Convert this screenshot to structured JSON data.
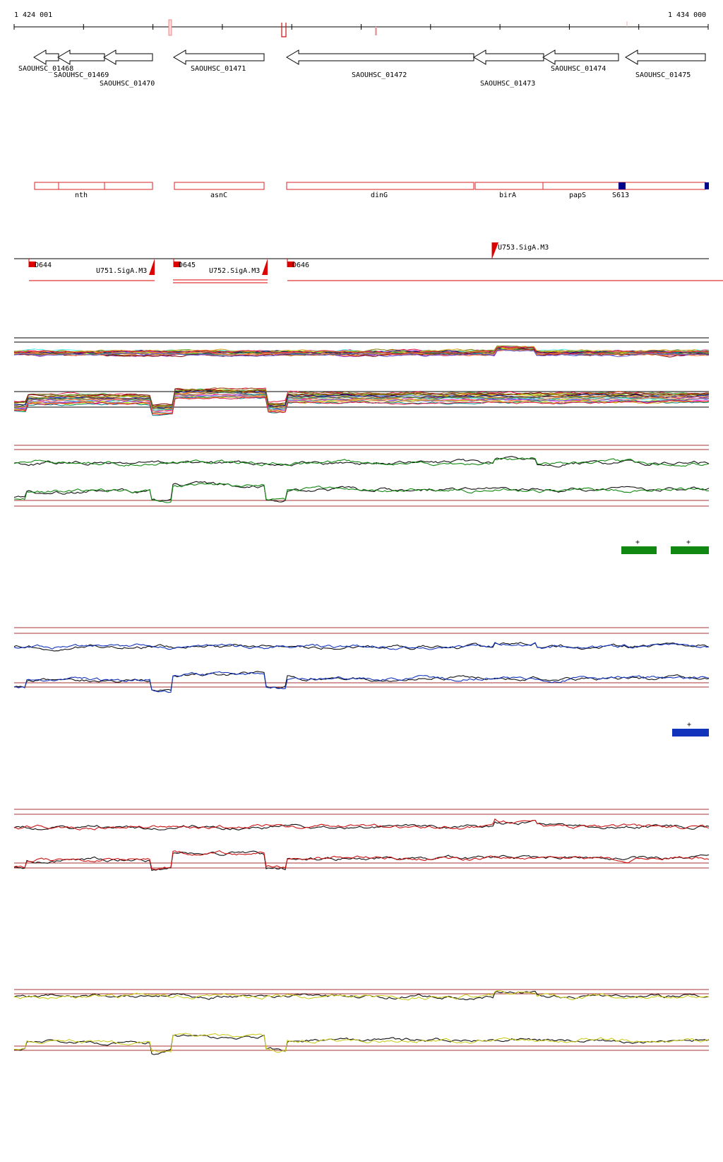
{
  "ruler": {
    "start_label": "1 424 001",
    "end_label": "1 434 000"
  },
  "genes": [
    {
      "label": "SAOUHSC_01468"
    },
    {
      "label": "SAOUHSC_01469"
    },
    {
      "label": "SAOUHSC_01470"
    },
    {
      "label": "SAOUHSC_01471"
    },
    {
      "label": "SAOUHSC_01472"
    },
    {
      "label": "SAOUHSC_01473"
    },
    {
      "label": "SAOUHSC_01474"
    },
    {
      "label": "SAOUHSC_01475"
    }
  ],
  "gene_names": [
    {
      "label": "nth"
    },
    {
      "label": "asnC"
    },
    {
      "label": "dinG"
    },
    {
      "label": "birA"
    },
    {
      "label": "papS"
    },
    {
      "label": "S613"
    }
  ],
  "features": [
    {
      "label": "D644"
    },
    {
      "label": "U751.SigA.M3"
    },
    {
      "label": "D645"
    },
    {
      "label": "U752.SigA.M3"
    },
    {
      "label": "D646"
    },
    {
      "label": "U753.SigA.M3"
    }
  ],
  "strand_marks": {
    "green": [
      "+",
      "+"
    ],
    "blue": [
      "+"
    ]
  },
  "colors": {
    "green": "#118811",
    "blue": "#1133bb",
    "red": "#cc1111",
    "yellow": "#cccc22",
    "navy": "#000088",
    "box_red": "#dd2222"
  }
}
